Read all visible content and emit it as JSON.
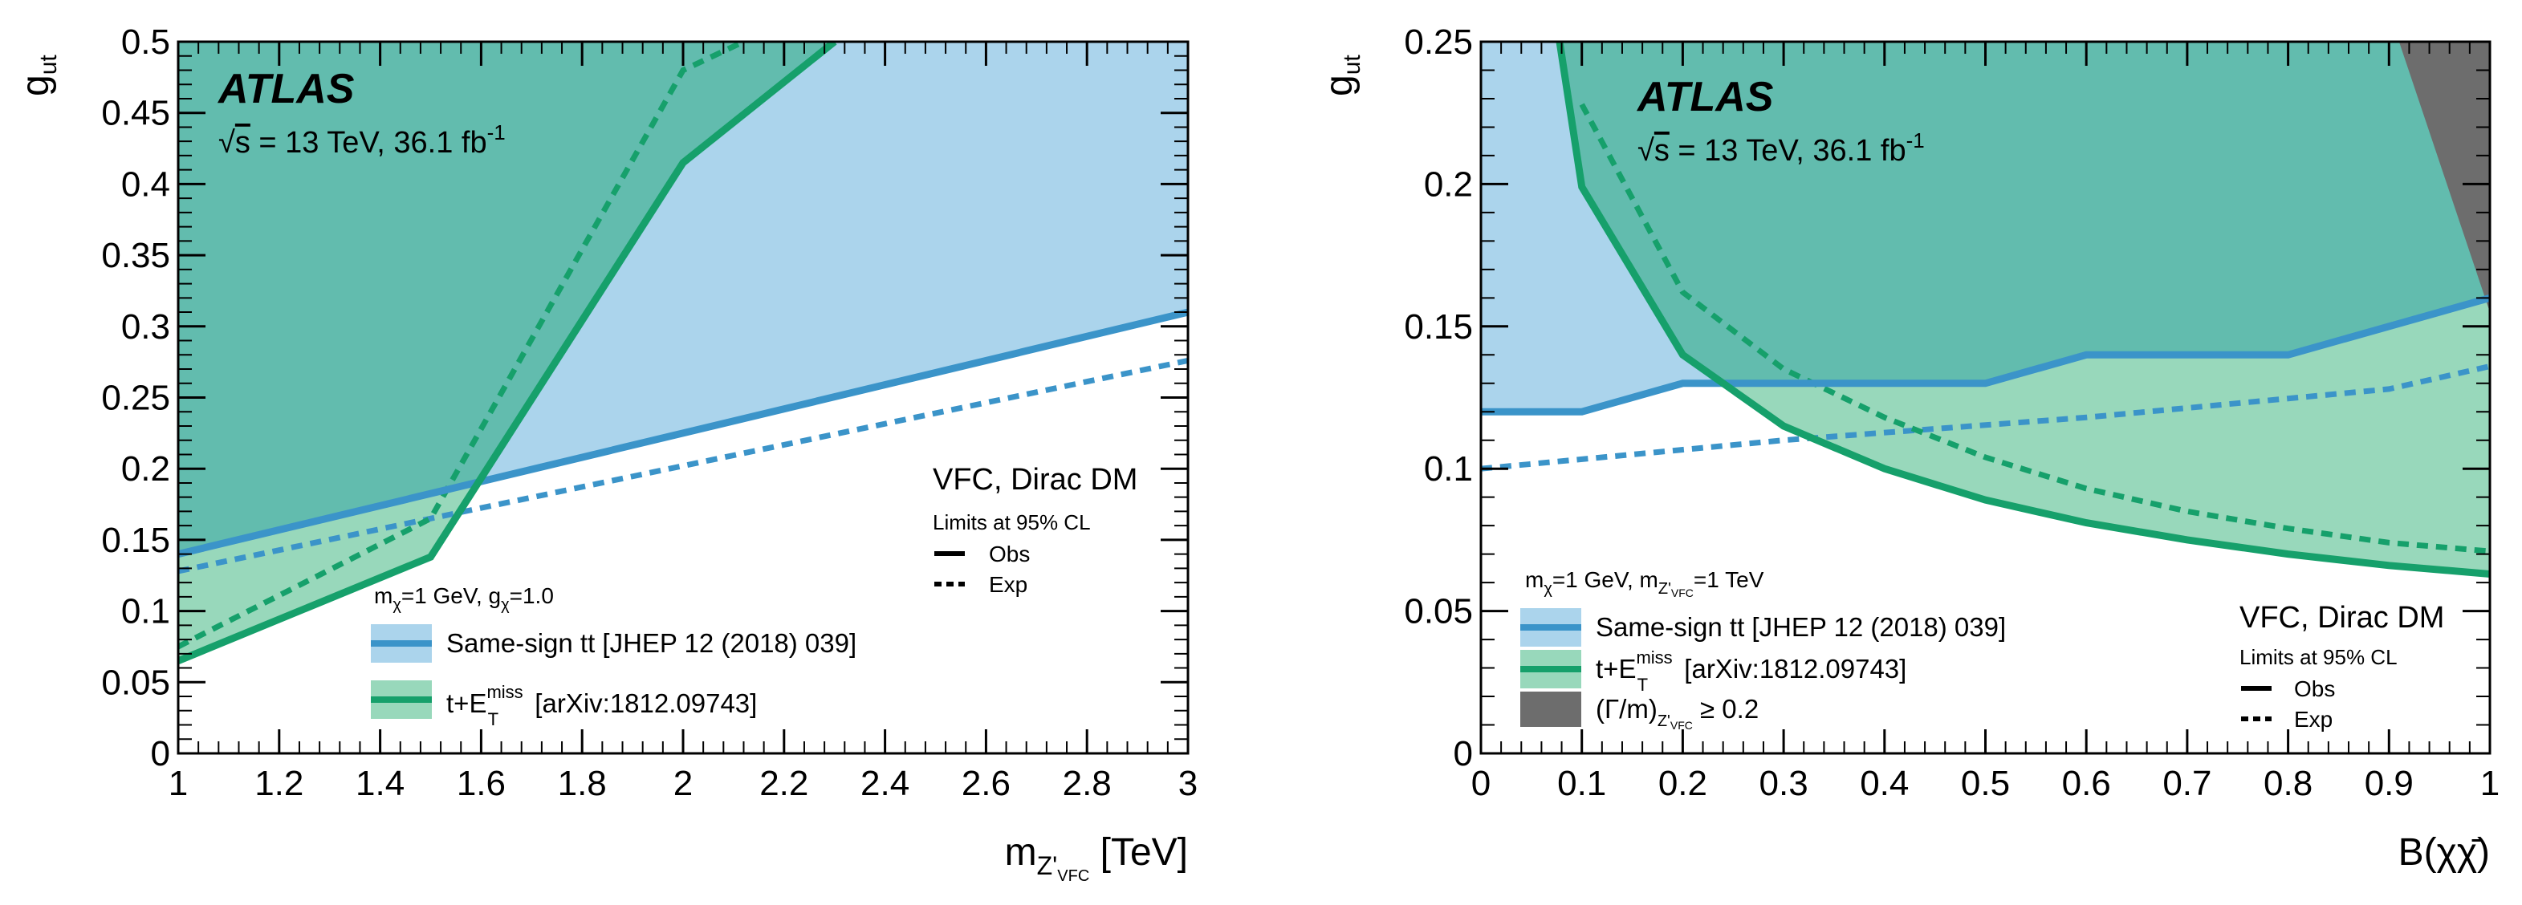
{
  "colors": {
    "blue_fill": "#abd4ec",
    "blue_line": "#3b94c9",
    "green_fill": "#98d8bb",
    "green_line": "#16a06b",
    "overlap_fill": "#62bcae",
    "grey_fill": "#6d6d6d"
  },
  "common": {
    "atlas": "ATLAS",
    "energy_prefix": "√",
    "energy_s": "s",
    "energy_rest": " = 13 TeV, 36.1 fb",
    "energy_sup": "-1",
    "model": "VFC, Dirac DM",
    "cl": "Limits at 95% CL",
    "obs": "Obs",
    "exp": "Exp",
    "leg_samesign": "Same-sign tt [JHEP 12 (2018) 039]",
    "leg_met_t": "t+E",
    "leg_met_sup": "miss",
    "leg_met_sub": "T",
    "leg_met_ref": " [arXiv:1812.09743]"
  },
  "chart_data": [
    {
      "type": "area",
      "xlabel_main": "m",
      "xlabel_sub": "Z'",
      "xlabel_subsub": "VFC",
      "xlabel_unit": " [TeV]",
      "ylabel_main": "g",
      "ylabel_sub": "ut",
      "xlim": [
        1,
        3
      ],
      "ylim": [
        0,
        0.5
      ],
      "xticks": [
        "1",
        "1.2",
        "1.4",
        "1.6",
        "1.8",
        "2",
        "2.2",
        "2.4",
        "2.6",
        "2.8",
        "3"
      ],
      "yticks": [
        "0",
        "0.05",
        "0.1",
        "0.15",
        "0.2",
        "0.25",
        "0.3",
        "0.35",
        "0.4",
        "0.45",
        "0.5"
      ],
      "params_main": "m",
      "params_sub1": "χ",
      "params_mid": "=1 GeV, g",
      "params_sub2": "χ",
      "params_end": "=1.0",
      "series": [
        {
          "name": "Same-sign tt obs",
          "x": [
            1,
            3
          ],
          "y": [
            0.14,
            0.31
          ]
        },
        {
          "name": "Same-sign tt exp",
          "x": [
            1,
            3
          ],
          "y": [
            0.128,
            0.276
          ]
        },
        {
          "name": "t+MET obs",
          "x": [
            1,
            1.5,
            2,
            2.3
          ],
          "y": [
            0.065,
            0.138,
            0.415,
            0.5
          ]
        },
        {
          "name": "t+MET exp",
          "x": [
            1,
            1.5,
            2,
            2.12
          ],
          "y": [
            0.075,
            0.165,
            0.48,
            0.5
          ]
        }
      ]
    },
    {
      "type": "area",
      "xlabel_main": "B(χχ̄)",
      "ylabel_main": "g",
      "ylabel_sub": "ut",
      "xlim": [
        0,
        1
      ],
      "ylim": [
        0,
        0.25
      ],
      "xticks": [
        "0",
        "0.1",
        "0.2",
        "0.3",
        "0.4",
        "0.5",
        "0.6",
        "0.7",
        "0.8",
        "0.9",
        "1"
      ],
      "yticks": [
        "0",
        "0.05",
        "0.1",
        "0.15",
        "0.2",
        "0.25"
      ],
      "params_main": "m",
      "params_sub1": "χ",
      "params_mid": "=1 GeV, m",
      "params_sub2": "Z'",
      "params_subsub2": "VFC",
      "params_end": "=1 TeV",
      "leg_width_pre": "(Γ/m)",
      "leg_width_sub": "Z'",
      "leg_width_subsub": "VFC",
      "leg_width_post": " ≥ 0.2",
      "series": [
        {
          "name": "Same-sign tt obs",
          "x": [
            0,
            0.1,
            0.2,
            0.5,
            0.6,
            0.8,
            1
          ],
          "y": [
            0.12,
            0.12,
            0.13,
            0.13,
            0.14,
            0.14,
            0.16
          ]
        },
        {
          "name": "Same-sign tt exp",
          "x": [
            0,
            0.3,
            0.6,
            0.9,
            1
          ],
          "y": [
            0.1,
            0.11,
            0.118,
            0.128,
            0.136
          ]
        },
        {
          "name": "t+MET obs",
          "x": [
            0.078,
            0.1,
            0.2,
            0.3,
            0.4,
            0.5,
            0.6,
            0.7,
            0.8,
            0.9,
            1
          ],
          "y": [
            0.25,
            0.199,
            0.14,
            0.115,
            0.1,
            0.089,
            0.081,
            0.075,
            0.07,
            0.066,
            0.063
          ]
        },
        {
          "name": "t+MET exp",
          "x": [
            0.1,
            0.2,
            0.3,
            0.4,
            0.5,
            0.6,
            0.7,
            0.8,
            0.9,
            1
          ],
          "y": [
            0.228,
            0.162,
            0.135,
            0.118,
            0.104,
            0.093,
            0.085,
            0.079,
            0.074,
            0.071
          ]
        }
      ],
      "width_region": {
        "x_top": 0.91,
        "x_bottom": 1.0,
        "y_bottom": 0.155
      }
    }
  ]
}
